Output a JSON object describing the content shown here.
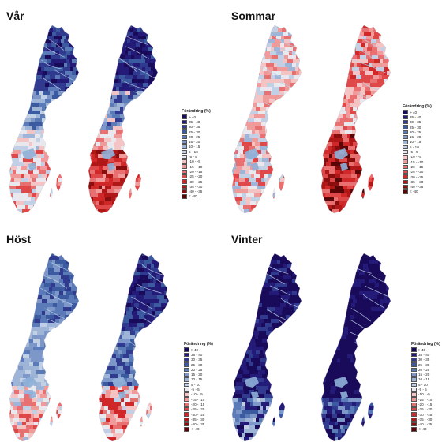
{
  "legend": {
    "title": "Förändring (%)",
    "classes": [
      {
        "label": "> 40",
        "color": "#1a0a5a"
      },
      {
        "label": "35 - 40",
        "color": "#241a78"
      },
      {
        "label": "30 - 35",
        "color": "#303a8e"
      },
      {
        "label": "25 - 30",
        "color": "#3c5aa0"
      },
      {
        "label": "20 - 25",
        "color": "#5a7ab8"
      },
      {
        "label": "15 - 20",
        "color": "#7d98c8"
      },
      {
        "label": "10 - 15",
        "color": "#9fb5d8"
      },
      {
        "label": "5 - 10",
        "color": "#c2d0e6"
      },
      {
        "label": "-5 - 5",
        "color": "#e8e8ee"
      },
      {
        "label": "-10 - -5",
        "color": "#f4c4c4"
      },
      {
        "label": "-15 - -10",
        "color": "#f09a9a"
      },
      {
        "label": "-20 - -15",
        "color": "#e87070"
      },
      {
        "label": "-25 - -20",
        "color": "#df4848"
      },
      {
        "label": "-30 - -25",
        "color": "#d02828"
      },
      {
        "label": "-35 - -30",
        "color": "#b01818"
      },
      {
        "label": "-40 - -35",
        "color": "#8a0e0e"
      },
      {
        "label": "< -40",
        "color": "#5a0606"
      }
    ]
  },
  "panels": [
    {
      "id": "var",
      "title": "Vår",
      "palette": "spring"
    },
    {
      "id": "sommar",
      "title": "Sommar",
      "palette": "summer"
    },
    {
      "id": "host",
      "title": "Höst",
      "palette": "autumn"
    },
    {
      "id": "vinter",
      "title": "Vinter",
      "palette": "winter"
    }
  ]
}
